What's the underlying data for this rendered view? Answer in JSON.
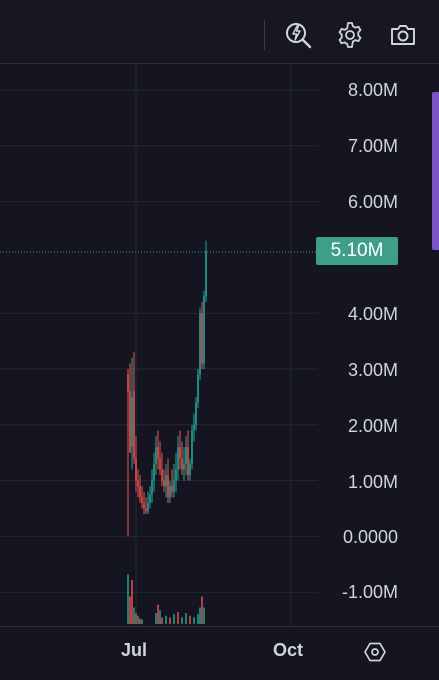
{
  "toolbar": {
    "icons": [
      "quick-action-search-icon",
      "gear-icon",
      "camera-icon"
    ]
  },
  "chart_data": {
    "type": "candlestick",
    "y_axis_labels": [
      "8.00M",
      "7.00M",
      "6.00M",
      "4.00M",
      "3.00M",
      "2.00M",
      "1.00M",
      "0.0000",
      "-1.00M"
    ],
    "x_axis_labels": [
      "Jul",
      "Oct"
    ],
    "last_price_label": "5.10M",
    "last_price": 5100000,
    "ylim": [
      -1250000,
      8250000
    ],
    "grid": true,
    "up_color": "#26a69a",
    "down_color": "#ef5350",
    "last_price_color": "#3e9e8a"
  }
}
